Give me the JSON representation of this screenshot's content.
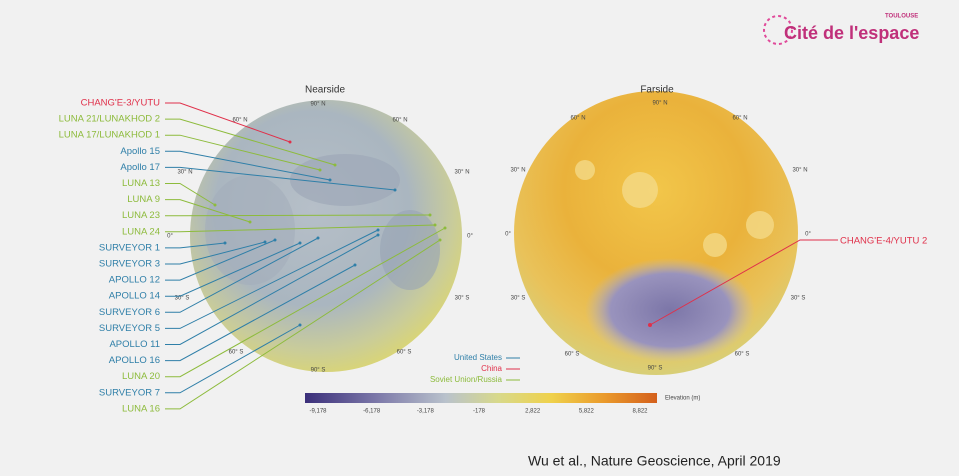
{
  "logo": {
    "name": "Cité de l'espace",
    "city": "TOULOUSE"
  },
  "nearside": {
    "title": "Nearside",
    "grid_labels": [
      "90° N",
      "60° N",
      "60° N",
      "30° N",
      "30° N",
      "0°",
      "0°",
      "30° S",
      "30° S",
      "60° S",
      "60° S",
      "90° S"
    ]
  },
  "farside": {
    "title": "Farside",
    "grid_labels": [
      "90° N",
      "60° N",
      "60° N",
      "30° N",
      "30° N",
      "0°",
      "0°",
      "30° S",
      "30° S",
      "60° S",
      "60° S",
      "90° S"
    ],
    "site": {
      "label": "CHANG'E-4/YUTU 2",
      "color": "#e0304a"
    }
  },
  "sites": [
    {
      "label": "CHANG'E-3/YUTU",
      "color": "#e0304a"
    },
    {
      "label": "LUNA 21/LUNAKHOD 2",
      "color": "#8dbb3c"
    },
    {
      "label": "LUNA 17/LUNAKHOD 1",
      "color": "#8dbb3c"
    },
    {
      "label": "Apollo 15",
      "color": "#2f7fa8"
    },
    {
      "label": "Apollo 17",
      "color": "#2f7fa8"
    },
    {
      "label": "LUNA 13",
      "color": "#8dbb3c"
    },
    {
      "label": "LUNA 9",
      "color": "#8dbb3c"
    },
    {
      "label": "LUNA 23",
      "color": "#8dbb3c"
    },
    {
      "label": "LUNA 24",
      "color": "#8dbb3c"
    },
    {
      "label": "SURVEYOR 1",
      "color": "#2f7fa8"
    },
    {
      "label": "SURVEYOR 3",
      "color": "#2f7fa8"
    },
    {
      "label": "APOLLO 12",
      "color": "#2f7fa8"
    },
    {
      "label": "APOLLO 14",
      "color": "#2f7fa8"
    },
    {
      "label": "SURVEYOR 6",
      "color": "#2f7fa8"
    },
    {
      "label": "SURVEYOR 5",
      "color": "#2f7fa8"
    },
    {
      "label": "APOLLO 11",
      "color": "#2f7fa8"
    },
    {
      "label": "APOLLO 16",
      "color": "#2f7fa8"
    },
    {
      "label": "LUNA 20",
      "color": "#8dbb3c"
    },
    {
      "label": "SURVEYOR 7",
      "color": "#2f7fa8"
    },
    {
      "label": "LUNA 16",
      "color": "#8dbb3c"
    }
  ],
  "legend": [
    {
      "label": "United States",
      "color": "#2f7fa8"
    },
    {
      "label": "China",
      "color": "#e0304a"
    },
    {
      "label": "Soviet Union/Russia",
      "color": "#8dbb3c"
    }
  ],
  "colorbar": {
    "ticks": [
      "-9,178",
      "-6,178",
      "-3,178",
      "-178",
      "2,822",
      "5,822",
      "8,822"
    ],
    "label": "Elevation (m)"
  },
  "credit": "Wu et al., Nature Geoscience, April 2019"
}
